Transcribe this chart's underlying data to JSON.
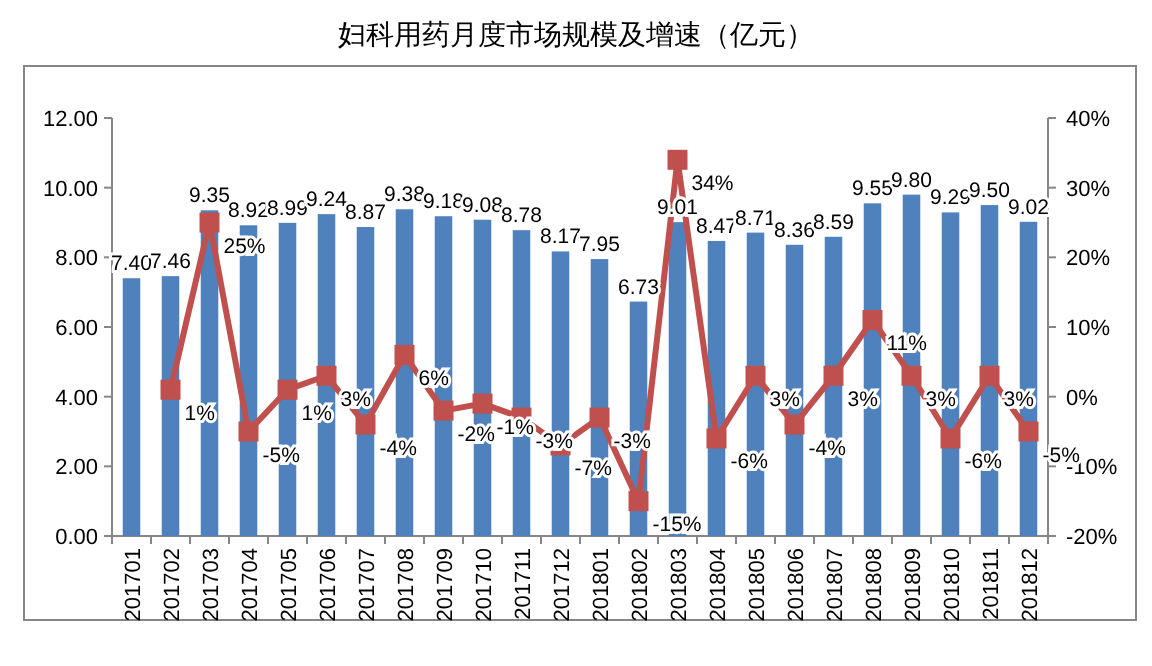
{
  "chart_data": {
    "type": "bar",
    "title": "妇科用药月度市场规模及增速（亿元）",
    "categories": [
      "201701",
      "201702",
      "201703",
      "201704",
      "201705",
      "201706",
      "201707",
      "201708",
      "201709",
      "201710",
      "201711",
      "201712",
      "201801",
      "201802",
      "201803",
      "201804",
      "201805",
      "201806",
      "201807",
      "201808",
      "201809",
      "201810",
      "201811",
      "201812"
    ],
    "series": [
      {
        "color": "#4f81bd",
        "values": [
          7.4,
          7.46,
          9.35,
          8.92,
          8.99,
          9.24,
          8.87,
          9.38,
          9.18,
          9.08,
          8.78,
          8.17,
          7.95,
          6.73,
          9.01,
          8.47,
          8.71,
          8.36,
          8.59,
          9.55,
          9.8,
          9.29,
          9.5,
          9.02
        ],
        "value_labels": [
          "7.40",
          "7.46",
          "9.35",
          "8.92",
          "8.99",
          "9.24",
          "8.87",
          "9.38",
          "9.18",
          "9.08",
          "8.78",
          "8.17",
          "7.95",
          "6.73",
          "9.01",
          "8.47",
          "8.71",
          "8.36",
          "8.59",
          "9.55",
          "9.80",
          "9.29",
          "9.50",
          "9.02"
        ]
      },
      {
        "type": "line",
        "axis": "y2",
        "color": "#c0504d",
        "marker": "square",
        "values": [
          null,
          1,
          25,
          -5,
          1,
          3,
          -4,
          6,
          -2,
          -1,
          -3,
          -7,
          -3,
          -15,
          34,
          -6,
          3,
          -4,
          3,
          11,
          3,
          -6,
          3,
          -5
        ],
        "value_labels": [
          null,
          "1%",
          "25%",
          "-5%",
          "1%",
          "3%",
          "-4%",
          "6%",
          "-2%",
          "-1%",
          "-3%",
          "-7%",
          "-3%",
          "-15%",
          "34%",
          "-6%",
          "3%",
          "-4%",
          "3%",
          "11%",
          "3%",
          "-6%",
          "3%",
          "-5%"
        ]
      }
    ],
    "ylim": [
      0,
      12
    ],
    "yticks": [
      {
        "value": 0,
        "label": "0.00"
      },
      {
        "value": 2,
        "label": "2.00"
      },
      {
        "value": 4,
        "label": "4.00"
      },
      {
        "value": 6,
        "label": "6.00"
      },
      {
        "value": 8,
        "label": "8.00"
      },
      {
        "value": 10,
        "label": "10.00"
      },
      {
        "value": 12,
        "label": "12.00"
      }
    ],
    "y2lim": [
      -20,
      40
    ],
    "y2ticks": [
      {
        "value": -20,
        "label": "-20%"
      },
      {
        "value": -10,
        "label": "-10%"
      },
      {
        "value": 0,
        "label": "0%"
      },
      {
        "value": 10,
        "label": "10%"
      },
      {
        "value": 20,
        "label": "20%"
      },
      {
        "value": 30,
        "label": "30%"
      },
      {
        "value": 40,
        "label": "40%"
      }
    ],
    "grid": false
  }
}
